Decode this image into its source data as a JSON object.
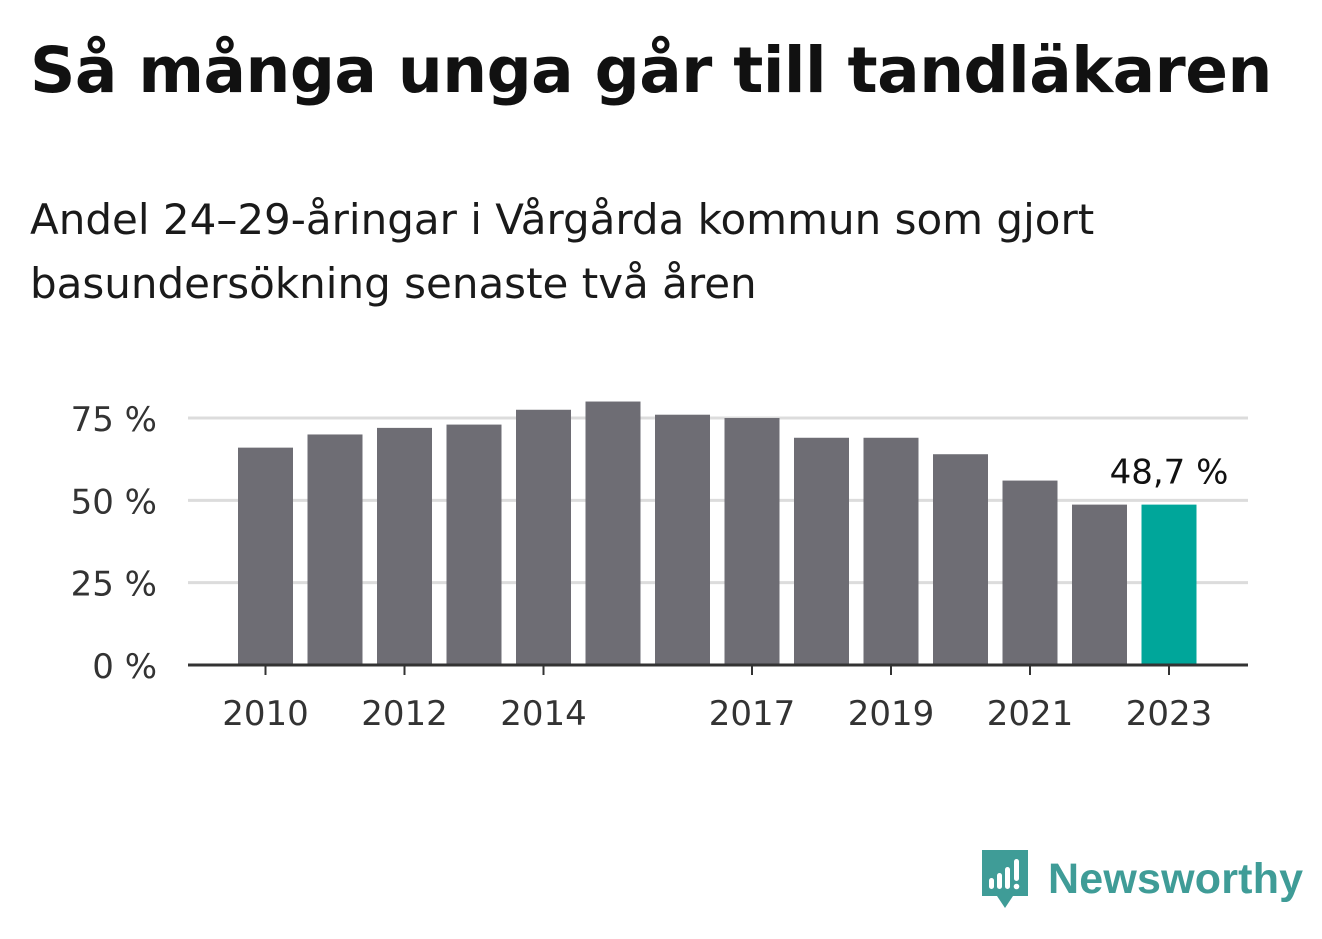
{
  "title": "Så många unga går till tandläkaren",
  "subtitle": "Andel 24–29-åringar i Vårgårda kommun som gjort basundersökning senaste två åren",
  "brand": {
    "name": "Newsworthy",
    "icon": "newsworthy-logo-icon",
    "color": "#3f9c97"
  },
  "chart_data": {
    "type": "bar",
    "title": "Så många unga går till tandläkaren",
    "subtitle": "Andel 24–29-åringar i Vårgårda kommun som gjort basundersökning senaste två åren",
    "xlabel": "",
    "ylabel": "",
    "categories": [
      "2010",
      "2011",
      "2012",
      "2013",
      "2014",
      "2015",
      "2016",
      "2017",
      "2018",
      "2019",
      "2020",
      "2021",
      "2022",
      "2023"
    ],
    "x_tick_labels": [
      "2010",
      "2012",
      "2014",
      "2017",
      "2019",
      "2021",
      "2023"
    ],
    "values": [
      66,
      70,
      72,
      73,
      77.5,
      80,
      76,
      75,
      69,
      69,
      64,
      56,
      48.7,
      48.7
    ],
    "unit": "%",
    "ylim": [
      0,
      80
    ],
    "y_ticks": [
      {
        "value": 0,
        "label": "0 %"
      },
      {
        "value": 25,
        "label": "25 %"
      },
      {
        "value": 50,
        "label": "50 %"
      },
      {
        "value": 75,
        "label": "75 %"
      }
    ],
    "grid": true,
    "legend": "none",
    "highlight": {
      "category": "2023",
      "label": "48,7 %"
    },
    "colors": {
      "bar": "#6e6d74",
      "highlight": "#00a69a",
      "grid": "#dcdcdc",
      "axis": "#333333"
    }
  }
}
